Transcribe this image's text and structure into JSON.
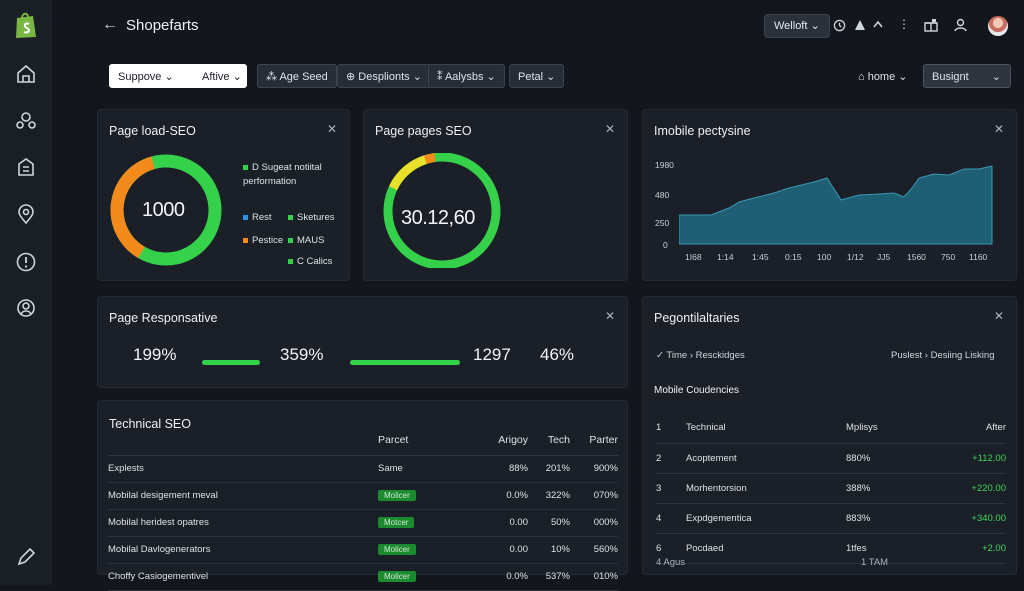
{
  "app": {
    "title": "Shopefarts",
    "back_label": "←",
    "user_button": "Welloft ⌄",
    "toolbar_icons": [
      "clock-icon",
      "alert-icon",
      "chevron-icon",
      "more-icon",
      "gift-icon",
      "user-icon"
    ]
  },
  "filters": {
    "chips": [
      "Suppove ⌄",
      "Aftive ⌄",
      "⁂ Age Seed",
      "⊕ Desplionts ⌄",
      "⁑ Aalysbs ⌄",
      "Petal ⌄"
    ],
    "home_label": "⌂ home ⌄",
    "busignt_label": "Busignt",
    "busignt_caret": "⌄"
  },
  "page_load": {
    "title": "Page load-SEO",
    "value": "1000",
    "legend": [
      {
        "label": "D Sugeat notiital performation",
        "color": "#35d14b"
      },
      {
        "label": "Rest",
        "color": "#2f8fe0"
      },
      {
        "label": "Sketures",
        "color": "#35d14b"
      },
      {
        "label": "Pestice",
        "color": "#f28b1c"
      },
      {
        "label": "MAUS",
        "color": "#35d14b"
      },
      {
        "label": "C Calics",
        "color": "#35d14b"
      }
    ]
  },
  "page_pages": {
    "title": "Page pages SEO",
    "value": "30.12,60"
  },
  "mobile_perf": {
    "title": "Imobile pectysine",
    "y_ticks": [
      "1980",
      "480",
      "250",
      "0"
    ],
    "x_ticks": [
      "1I68",
      "1:14",
      "1:45",
      "0:15",
      "100",
      "1/12",
      "JJ5",
      "1560",
      "750",
      "1160"
    ]
  },
  "page_responsive": {
    "title": "Page Responsative",
    "metrics": [
      "199%",
      "359%",
      "1297",
      "46%"
    ],
    "bar_fill": [
      1.0,
      1.0
    ]
  },
  "technical": {
    "title": "Technical SEO",
    "headers": [
      "Parcet",
      "Arigoy",
      "Tech",
      "Parter"
    ],
    "rows": [
      {
        "name": "Explests",
        "a": "Same",
        "b": "88%",
        "c": "201%",
        "d": "900%",
        "tag": false
      },
      {
        "name": "Mobilal desigement meval",
        "a": "Molicer",
        "b": "0.0%",
        "c": "322%",
        "d": "070%",
        "tag": true
      },
      {
        "name": "Mobilal heridest opatres",
        "a": "Motcer",
        "b": "0.00",
        "c": "50%",
        "d": "000%",
        "tag": true
      },
      {
        "name": "Mobilal Davlogenerators",
        "a": "Molicer",
        "b": "0.00",
        "c": "10%",
        "d": "560%",
        "tag": true
      },
      {
        "name": "Choffy Casiogementivel",
        "a": "Molicer",
        "b": "0.0%",
        "c": "537%",
        "d": "010%",
        "tag": true
      }
    ]
  },
  "pegonti": {
    "title": "Pegontilaltaries",
    "crumb_left": "✓ Time › Resckidges",
    "crumb_right": "Puslest › Desiing Lisking",
    "section": "Mobile Coudencies",
    "headers": [
      "Technical",
      "Mplisys",
      "After"
    ],
    "rows": [
      {
        "n": "1",
        "name": "Technical",
        "v": "Mplisys",
        "after": "After"
      },
      {
        "n": "2",
        "name": "Acoptement",
        "v": "880%",
        "after": "+112.00"
      },
      {
        "n": "3",
        "name": "Morhentorsion",
        "v": "388%",
        "after": "+220.00"
      },
      {
        "n": "4",
        "name": "Expdgementica",
        "v": "883%",
        "after": "+340.00"
      },
      {
        "n": "6",
        "name": "Pocdaed",
        "v": "1tfes",
        "after": "+2.00"
      }
    ],
    "footer_left": "4 Agus",
    "footer_mid": "1 TAM"
  }
}
